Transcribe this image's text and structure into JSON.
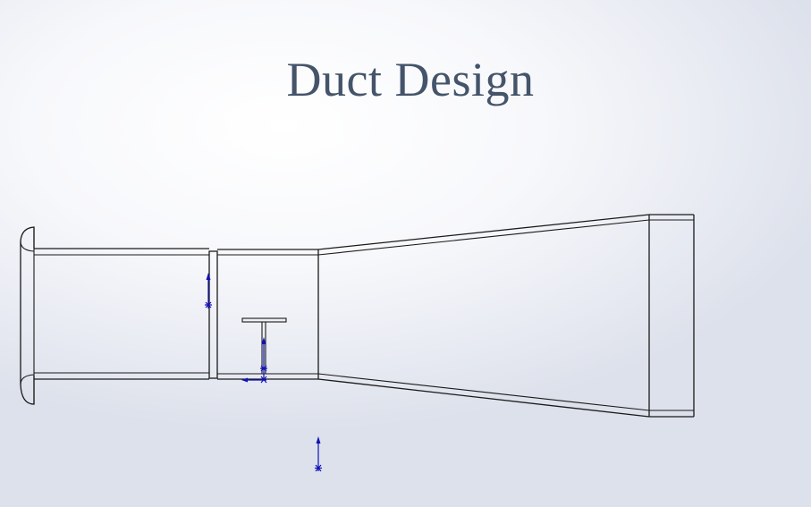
{
  "title": "Duct Design",
  "colors": {
    "title_text": "#44546a",
    "outline": "#1a1a1a",
    "sketch_annotation": "#1010b8"
  }
}
